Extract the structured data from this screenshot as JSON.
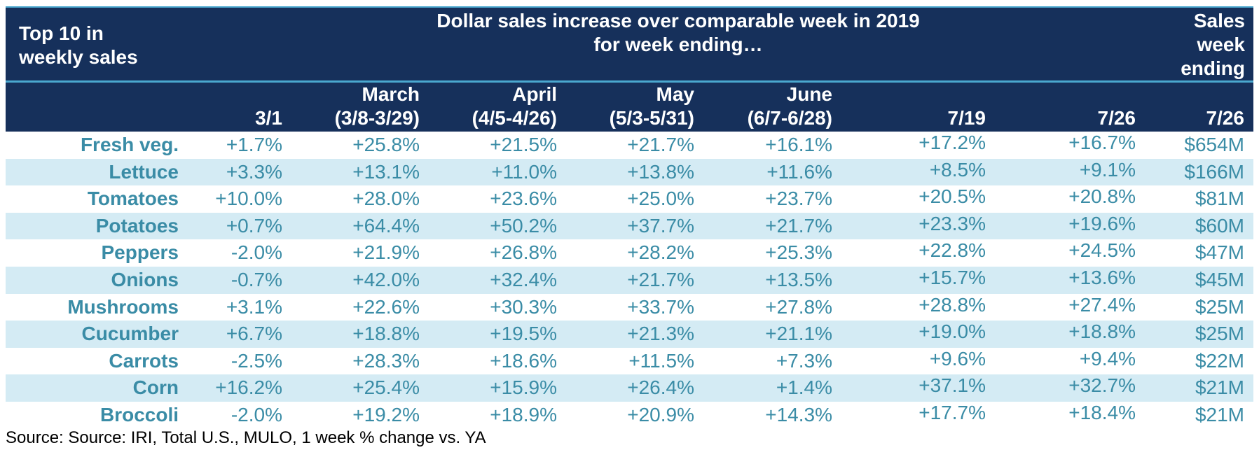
{
  "chart_data": {
    "type": "table",
    "header": {
      "top_left": [
        "Top 10 in",
        "weekly sales"
      ],
      "top_center": [
        "Dollar sales increase over comparable week in 2019",
        "for week ending…"
      ],
      "top_right": [
        "Sales",
        "week",
        "ending"
      ]
    },
    "columns": [
      {
        "line1": "",
        "line2": ""
      },
      {
        "line1": "",
        "line2": "3/1"
      },
      {
        "line1": "March",
        "line2": "(3/8-3/29)"
      },
      {
        "line1": "April",
        "line2": "(4/5-4/26)"
      },
      {
        "line1": "May",
        "line2": "(5/3-5/31)"
      },
      {
        "line1": "June",
        "line2": "(6/7-6/28)"
      },
      {
        "line1": "",
        "line2": "7/19"
      },
      {
        "line1": "",
        "line2": "7/26"
      },
      {
        "line1": "",
        "line2": "7/26"
      }
    ],
    "rows": [
      [
        "Fresh veg.",
        "+1.7%",
        "+25.8%",
        "+21.5%",
        "+21.7%",
        "+16.1%",
        "+17.2%",
        "+16.7%",
        "$654M"
      ],
      [
        "Lettuce",
        "+3.3%",
        "+13.1%",
        "+11.0%",
        "+13.8%",
        "+11.6%",
        "+8.5%",
        "+9.1%",
        "$166M"
      ],
      [
        "Tomatoes",
        "+10.0%",
        "+28.0%",
        "+23.6%",
        "+25.0%",
        "+23.7%",
        "+20.5%",
        "+20.8%",
        "$81M"
      ],
      [
        "Potatoes",
        "+0.7%",
        "+64.4%",
        "+50.2%",
        "+37.7%",
        "+21.7%",
        "+23.3%",
        "+19.6%",
        "$60M"
      ],
      [
        "Peppers",
        "-2.0%",
        "+21.9%",
        "+26.8%",
        "+28.2%",
        "+25.3%",
        "+22.8%",
        "+24.5%",
        "$47M"
      ],
      [
        "Onions",
        "-0.7%",
        "+42.0%",
        "+32.4%",
        "+21.7%",
        "+13.5%",
        "+15.7%",
        "+13.6%",
        "$45M"
      ],
      [
        "Mushrooms",
        "+3.1%",
        "+22.6%",
        "+30.3%",
        "+33.7%",
        "+27.8%",
        "+28.8%",
        "+27.4%",
        "$25M"
      ],
      [
        "Cucumber",
        "+6.7%",
        "+18.8%",
        "+19.5%",
        "+21.3%",
        "+21.1%",
        "+19.0%",
        "+18.8%",
        "$25M"
      ],
      [
        "Carrots",
        "-2.5%",
        "+28.3%",
        "+18.6%",
        "+11.5%",
        "+7.3%",
        "+9.6%",
        "+9.4%",
        "$22M"
      ],
      [
        "Corn",
        "+16.2%",
        "+25.4%",
        "+15.9%",
        "+26.4%",
        "+1.4%",
        "+37.1%",
        "+32.7%",
        "$21M"
      ],
      [
        "Broccoli",
        "-2.0%",
        "+19.2%",
        "+18.9%",
        "+20.9%",
        "+14.3%",
        "+17.7%",
        "+18.4%",
        "$21M"
      ]
    ],
    "source": "Source: Source: IRI, Total U.S., MULO, 1 week % change vs. YA"
  },
  "colors": {
    "header_bg": "#16305b",
    "header_text": "#ffffff",
    "rule": "#4aa8cf",
    "row_alt_bg": "#d4ebf4",
    "cell_text": "#3a8ca6"
  }
}
